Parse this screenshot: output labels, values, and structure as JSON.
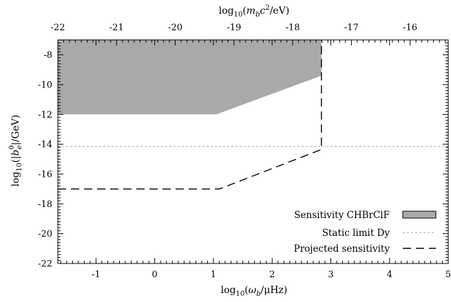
{
  "chart_data": {
    "type": "area",
    "xlabel": "log₁₀(ω_b/μHz)",
    "ylabel": "log₁₀(|b⁰_e|/GeV)",
    "x2label": "log₁₀(m_b c²/eV)",
    "xlim": [
      -1.65,
      5
    ],
    "ylim": [
      -22,
      -7
    ],
    "x2lim": [
      -22,
      -15.35
    ],
    "xticks": [
      -1,
      0,
      1,
      2,
      3,
      4,
      5
    ],
    "yticks": [
      -22,
      -20,
      -18,
      -16,
      -14,
      -12,
      -10,
      -8
    ],
    "x2ticks": [
      -22,
      -21,
      -20,
      -19,
      -18,
      -17,
      -16
    ],
    "series": [
      {
        "name": "Sensitivity CHBrClF",
        "style": "filled-region",
        "color": "#a9a9a9",
        "points": [
          [
            -1.65,
            -7
          ],
          [
            2.84,
            -7
          ],
          [
            2.84,
            -9.4
          ],
          [
            1.05,
            -12
          ],
          [
            -1.65,
            -12
          ]
        ]
      },
      {
        "name": "Static limit Dy",
        "style": "dotted-line",
        "color": "#b4b4b4",
        "points": [
          [
            -1.65,
            -14.15
          ],
          [
            5,
            -14.15
          ]
        ]
      },
      {
        "name": "Projected sensitivity",
        "style": "dashed-line",
        "color": "#000000",
        "points": [
          [
            -1.65,
            -17
          ],
          [
            1.1,
            -17
          ],
          [
            2.84,
            -14.35
          ],
          [
            2.84,
            -7
          ]
        ]
      }
    ],
    "legend_position": "bottom-right",
    "grid": false
  }
}
